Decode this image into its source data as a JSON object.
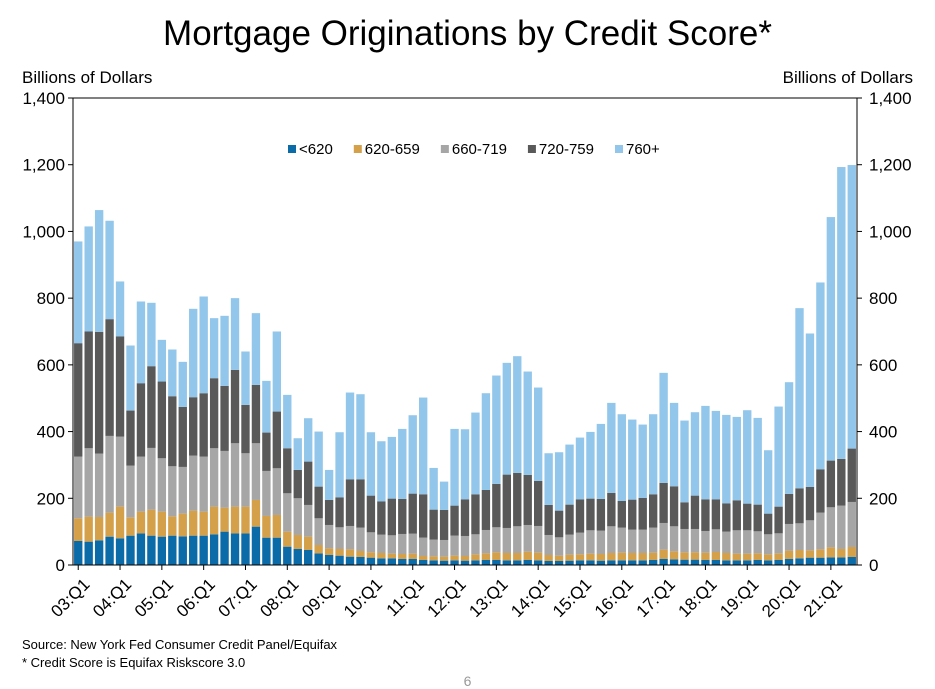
{
  "chart_data": {
    "type": "bar",
    "stacked": true,
    "title": "Mortgage Originations by Credit Score*",
    "ylabel": "Billions of Dollars",
    "ylabel_right": "Billions of Dollars",
    "xlabel": "",
    "ylim": [
      0,
      1400
    ],
    "yticks": [
      0,
      200,
      400,
      600,
      800,
      1000,
      1200,
      1400
    ],
    "ytick_labels": [
      "0",
      "200",
      "400",
      "600",
      "800",
      "1,000",
      "1,200",
      "1,400"
    ],
    "grid": false,
    "legend_position": "top-center",
    "x_tick_labels": [
      "03:Q1",
      "04:Q1",
      "05:Q1",
      "06:Q1",
      "07:Q1",
      "08:Q1",
      "09:Q1",
      "10:Q1",
      "11:Q1",
      "12:Q1",
      "13:Q1",
      "14:Q1",
      "15:Q1",
      "16:Q1",
      "17:Q1",
      "18:Q1",
      "19:Q1",
      "20:Q1",
      "21:Q1"
    ],
    "categories": [
      "2003Q1",
      "2003Q2",
      "2003Q3",
      "2003Q4",
      "2004Q1",
      "2004Q2",
      "2004Q3",
      "2004Q4",
      "2005Q1",
      "2005Q2",
      "2005Q3",
      "2005Q4",
      "2006Q1",
      "2006Q2",
      "2006Q3",
      "2006Q4",
      "2007Q1",
      "2007Q2",
      "2007Q3",
      "2007Q4",
      "2008Q1",
      "2008Q2",
      "2008Q3",
      "2008Q4",
      "2009Q1",
      "2009Q2",
      "2009Q3",
      "2009Q4",
      "2010Q1",
      "2010Q2",
      "2010Q3",
      "2010Q4",
      "2011Q1",
      "2011Q2",
      "2011Q3",
      "2011Q4",
      "2012Q1",
      "2012Q2",
      "2012Q3",
      "2012Q4",
      "2013Q1",
      "2013Q2",
      "2013Q3",
      "2013Q4",
      "2014Q1",
      "2014Q2",
      "2014Q3",
      "2014Q4",
      "2015Q1",
      "2015Q2",
      "2015Q3",
      "2015Q4",
      "2016Q1",
      "2016Q2",
      "2016Q3",
      "2016Q4",
      "2017Q1",
      "2017Q2",
      "2017Q3",
      "2017Q4",
      "2018Q1",
      "2018Q2",
      "2018Q3",
      "2018Q4",
      "2019Q1",
      "2019Q2",
      "2019Q3",
      "2019Q4",
      "2020Q1",
      "2020Q2",
      "2020Q3",
      "2020Q4",
      "2021Q1",
      "2021Q2",
      "2021Q3"
    ],
    "series": [
      {
        "name": "<620",
        "color": "#0b6aa8",
        "values": [
          72,
          70,
          74,
          85,
          80,
          88,
          95,
          88,
          85,
          88,
          86,
          88,
          88,
          92,
          100,
          95,
          95,
          115,
          82,
          82,
          55,
          48,
          45,
          35,
          30,
          28,
          25,
          24,
          22,
          20,
          20,
          18,
          18,
          15,
          14,
          13,
          14,
          13,
          14,
          15,
          15,
          14,
          14,
          15,
          14,
          12,
          12,
          13,
          14,
          14,
          13,
          14,
          14,
          14,
          14,
          15,
          18,
          17,
          16,
          16,
          15,
          15,
          14,
          14,
          14,
          15,
          14,
          15,
          18,
          20,
          22,
          22,
          23,
          23,
          24
        ]
      },
      {
        "name": "620-659",
        "color": "#d4a04a",
        "values": [
          68,
          75,
          70,
          72,
          95,
          55,
          65,
          78,
          75,
          58,
          68,
          75,
          72,
          83,
          72,
          80,
          80,
          80,
          65,
          68,
          45,
          42,
          40,
          25,
          20,
          20,
          22,
          18,
          16,
          16,
          14,
          15,
          16,
          12,
          12,
          12,
          14,
          14,
          18,
          20,
          23,
          22,
          22,
          25,
          23,
          18,
          16,
          18,
          18,
          20,
          20,
          22,
          23,
          22,
          22,
          22,
          28,
          24,
          22,
          22,
          22,
          24,
          22,
          20,
          20,
          20,
          18,
          20,
          25,
          25,
          22,
          25,
          30,
          25,
          30
        ]
      },
      {
        "name": "660-719",
        "color": "#a6a6a6",
        "values": [
          185,
          205,
          190,
          230,
          210,
          155,
          165,
          185,
          160,
          150,
          140,
          165,
          165,
          175,
          170,
          190,
          160,
          170,
          135,
          140,
          115,
          110,
          95,
          80,
          70,
          65,
          70,
          70,
          60,
          55,
          55,
          60,
          60,
          55,
          50,
          50,
          60,
          60,
          60,
          70,
          75,
          75,
          80,
          80,
          80,
          60,
          55,
          60,
          65,
          70,
          70,
          80,
          75,
          70,
          70,
          75,
          80,
          75,
          70,
          70,
          65,
          68,
          64,
          70,
          70,
          66,
          60,
          60,
          80,
          80,
          90,
          110,
          120,
          130,
          135
        ]
      },
      {
        "name": "720-759",
        "color": "#595959",
        "values": [
          340,
          350,
          365,
          350,
          300,
          165,
          220,
          245,
          230,
          210,
          180,
          175,
          190,
          210,
          195,
          220,
          145,
          175,
          115,
          170,
          135,
          85,
          130,
          95,
          75,
          90,
          140,
          145,
          110,
          100,
          110,
          105,
          120,
          130,
          90,
          90,
          90,
          110,
          120,
          120,
          130,
          160,
          160,
          150,
          135,
          90,
          80,
          90,
          100,
          95,
          95,
          100,
          80,
          90,
          95,
          100,
          120,
          120,
          80,
          100,
          95,
          90,
          85,
          90,
          80,
          80,
          62,
          80,
          90,
          105,
          100,
          130,
          140,
          140,
          160
        ]
      },
      {
        "name": "760+",
        "color": "#92c6ea",
        "values": [
          305,
          315,
          365,
          295,
          165,
          195,
          245,
          190,
          125,
          140,
          135,
          265,
          290,
          180,
          210,
          215,
          160,
          215,
          155,
          240,
          160,
          95,
          130,
          165,
          90,
          195,
          260,
          255,
          190,
          180,
          185,
          210,
          235,
          290,
          125,
          85,
          230,
          210,
          245,
          290,
          325,
          335,
          350,
          310,
          280,
          155,
          175,
          180,
          185,
          200,
          225,
          270,
          260,
          240,
          220,
          240,
          330,
          250,
          245,
          250,
          280,
          265,
          265,
          250,
          280,
          260,
          190,
          300,
          335,
          540,
          460,
          560,
          730,
          875,
          850
        ]
      }
    ]
  },
  "footnotes": {
    "source": "Source: New York Fed Consumer Credit Panel/Equifax",
    "asterisk": "* Credit Score is Equifax Riskscore 3.0"
  },
  "page_number": "6"
}
